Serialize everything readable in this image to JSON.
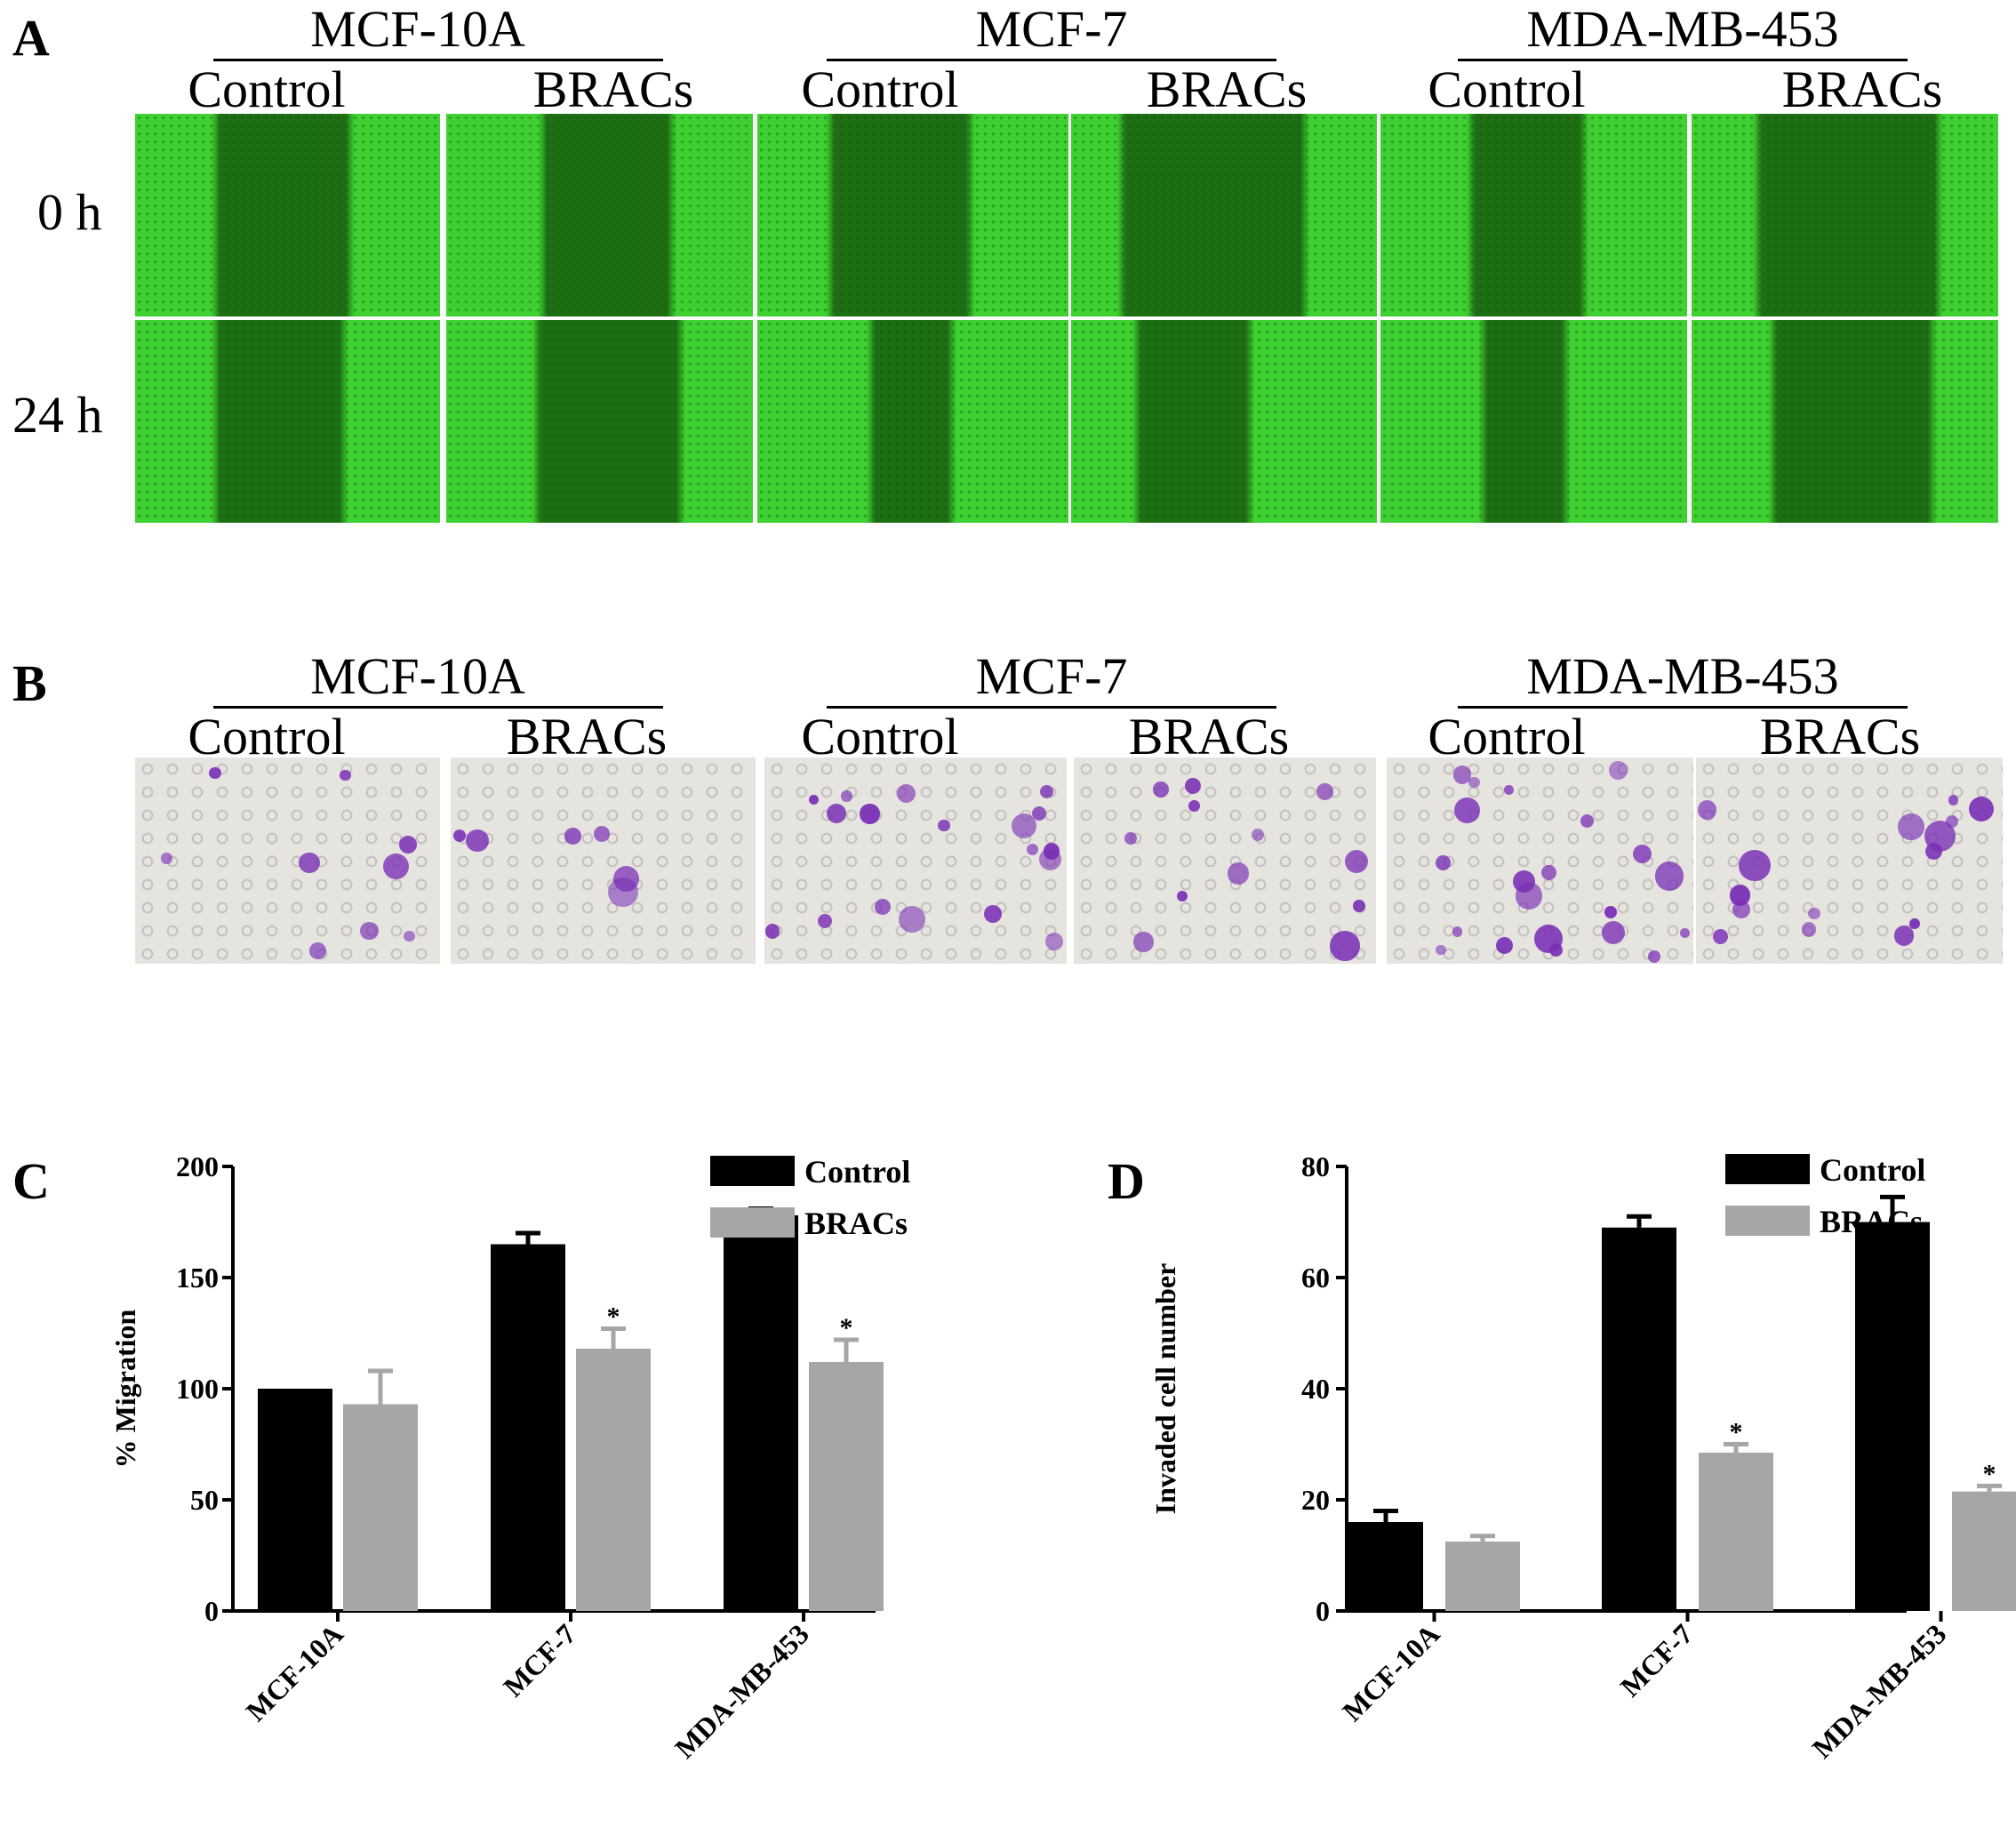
{
  "panel_a": {
    "letter": "A",
    "cell_lines": [
      "MCF-10A",
      "MCF-7",
      "MDA-MB-453"
    ],
    "conditions": [
      "Control",
      "BRACs"
    ],
    "timepoints": [
      "0 h",
      "24 h"
    ]
  },
  "panel_b": {
    "letter": "B",
    "cell_lines": [
      "MCF-10A",
      "MCF-7",
      "MDA-MB-453"
    ],
    "conditions": [
      "Control",
      "BRACs"
    ]
  },
  "colors": {
    "control": "#000000",
    "bracs": "#a6a6a6",
    "fluor_cells": "#3fd131",
    "fluor_gap": "#1e6e14",
    "stain_bg": "#e6e4df",
    "stain_cell": "#7a2fb5"
  },
  "chart_data": [
    {
      "panel": "C",
      "type": "bar",
      "categories": [
        "MCF-10A",
        "MCF-7",
        "MDA-MB-453"
      ],
      "series": [
        {
          "name": "Control",
          "values": [
            100,
            165,
            178
          ],
          "errors": [
            0,
            5,
            3
          ]
        },
        {
          "name": "BRACs",
          "values": [
            93,
            118,
            112
          ],
          "errors": [
            15,
            9,
            10
          ],
          "markers": [
            "",
            "*",
            "*"
          ]
        }
      ],
      "ylabel": "% Migration",
      "ylim": [
        0,
        200
      ],
      "yticks": [
        0,
        50,
        100,
        150,
        200
      ],
      "legend": "top-right",
      "grid": false
    },
    {
      "panel": "D",
      "type": "bar",
      "categories": [
        "MCF-10A",
        "MCF-7",
        "MDA-MB-453"
      ],
      "series": [
        {
          "name": "Control",
          "values": [
            16,
            69,
            70
          ],
          "errors": [
            2,
            2,
            4.5
          ]
        },
        {
          "name": "BRACs",
          "values": [
            12.5,
            28.5,
            21.5
          ],
          "errors": [
            1,
            1.5,
            1
          ],
          "markers": [
            "",
            "*",
            "*"
          ]
        }
      ],
      "ylabel": "Invaded cell number",
      "ylim": [
        0,
        80
      ],
      "yticks": [
        0,
        20,
        40,
        60,
        80
      ],
      "legend": "top-right",
      "grid": false
    }
  ]
}
